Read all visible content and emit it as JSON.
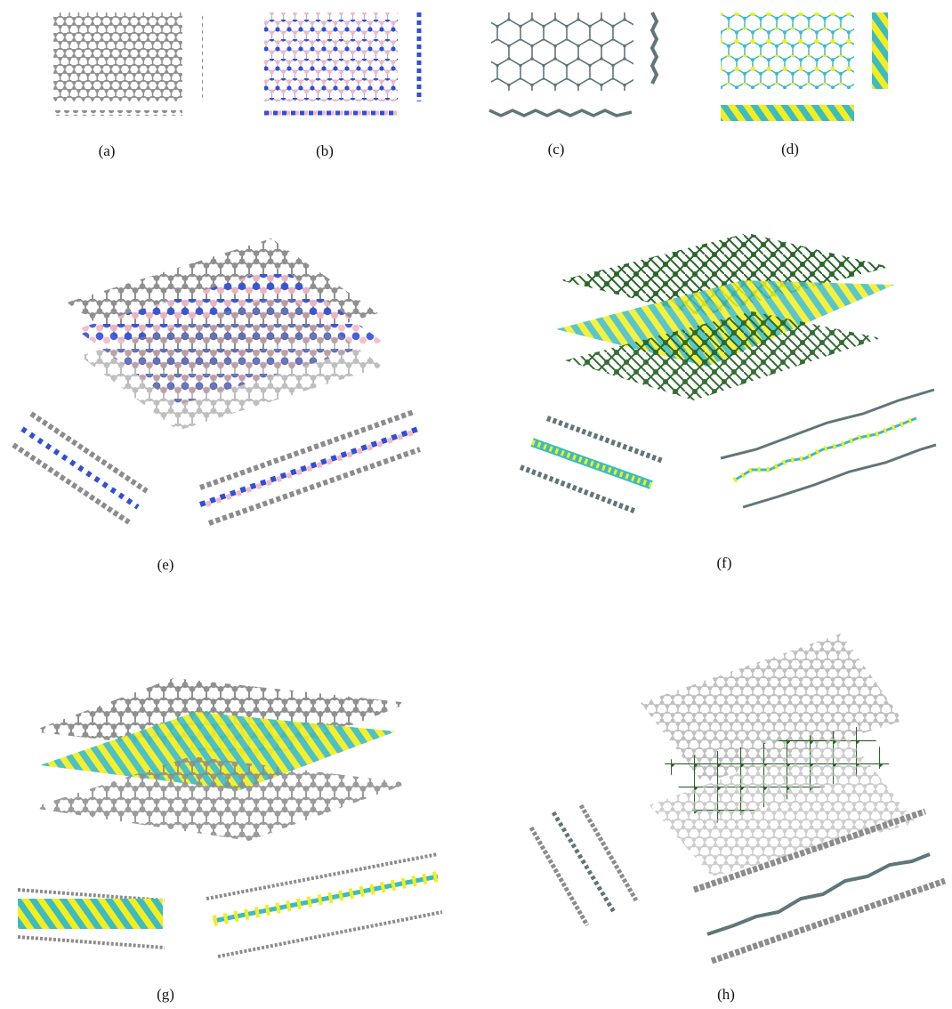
{
  "panels": [
    {
      "id": "a",
      "label": "(a)"
    },
    {
      "id": "b",
      "label": "(b)"
    },
    {
      "id": "c",
      "label": "(c)"
    },
    {
      "id": "d",
      "label": "(d)"
    },
    {
      "id": "e",
      "label": "(e)"
    },
    {
      "id": "f",
      "label": "(f)"
    },
    {
      "id": "g",
      "label": "(g)"
    },
    {
      "id": "h",
      "label": "(h)"
    }
  ],
  "colors": {
    "carbon": "#8c8c8c",
    "nitrogen": "#2f4fd8",
    "boron": "#f2b8c6",
    "phosphorus": "#1f5d1f",
    "metal": "#3bbcc4",
    "sulfur": "#f5ee1a",
    "silicon": "#5f7678"
  }
}
